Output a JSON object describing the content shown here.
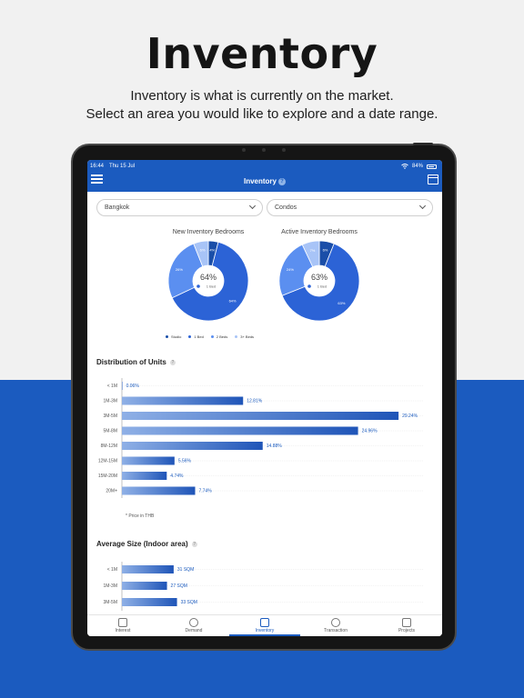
{
  "promo": {
    "title": "Inventory",
    "subtitle_line1": "Inventory is what is currently on the market.",
    "subtitle_line2": "Select an area you would like to explore and a date range."
  },
  "status_bar": {
    "time": "16:44",
    "date": "Thu 15 Jul",
    "battery": "84%"
  },
  "header": {
    "title": "Inventory",
    "help": "?"
  },
  "filters": {
    "area": "Bangkok",
    "type": "Condos"
  },
  "colors": {
    "studio": "#1a4ea8",
    "one_bed": "#2c63d6",
    "two_bed": "#5b8ff0",
    "three_plus": "#a8c4f7",
    "accent": "#1b5bbf"
  },
  "donuts": [
    {
      "title": "New Inventory Bedrooms",
      "center_value": "64%",
      "center_label": "1 Bed",
      "slices": [
        {
          "name": "Studio",
          "value": 4,
          "label": "4%"
        },
        {
          "name": "1 Bed",
          "value": 64,
          "label": "64%"
        },
        {
          "name": "2 Beds",
          "value": 26,
          "label": "26%"
        },
        {
          "name": "3+ Beds",
          "value": 6,
          "label": "6%"
        }
      ]
    },
    {
      "title": "Active Inventory Bedrooms",
      "center_value": "63%",
      "center_label": "1 Bed",
      "slices": [
        {
          "name": "Studio",
          "value": 6,
          "label": "6%"
        },
        {
          "name": "1 Bed",
          "value": 63,
          "label": "63%"
        },
        {
          "name": "2 Beds",
          "value": 24,
          "label": "24%"
        },
        {
          "name": "3+ Beds",
          "value": 7,
          "label": "7%"
        }
      ]
    }
  ],
  "legend": [
    "Studio",
    "1 Bed",
    "2 Beds",
    "3+ Beds"
  ],
  "chart_data": [
    {
      "type": "bar",
      "title": "Distribution of Units",
      "categories": [
        "< 1M",
        "1M-3M",
        "3M-5M",
        "5M-8M",
        "8M-12M",
        "12M-15M",
        "15M-20M",
        "20M+"
      ],
      "values": [
        0.06,
        12.81,
        29.24,
        24.96,
        14.88,
        5.56,
        4.74,
        7.74
      ],
      "labels": [
        "0.06%",
        "12.81%",
        "29.24%",
        "24.96%",
        "14.88%",
        "5.56%",
        "4.74%",
        "7.74%"
      ],
      "max": 30,
      "note": "* Price in THB"
    },
    {
      "type": "bar",
      "title": "Average Size (Indoor area)",
      "categories": [
        "< 1M",
        "1M-3M",
        "3M-5M"
      ],
      "values": [
        31,
        27,
        33
      ],
      "labels": [
        "31 SQM",
        "27 SQM",
        "33 SQM"
      ],
      "max": 170
    }
  ],
  "tabs": [
    {
      "label": "Interest",
      "icon": "bar-chart-icon"
    },
    {
      "label": "Demand",
      "icon": "pie-chart-icon"
    },
    {
      "label": "Inventory",
      "icon": "building-icon",
      "active": true
    },
    {
      "label": "Transaction",
      "icon": "dollar-icon"
    },
    {
      "label": "Projects",
      "icon": "list-icon"
    }
  ]
}
